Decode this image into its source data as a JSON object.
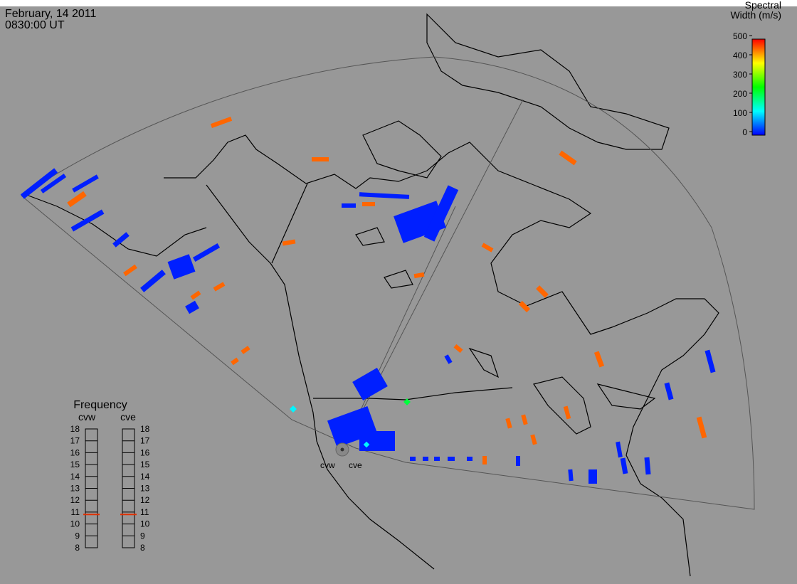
{
  "header": {
    "date": "February, 14 2011",
    "time": "0830:00 UT"
  },
  "colorbar": {
    "title": [
      "Spectral",
      "Width (m/s)"
    ],
    "clim": [
      0,
      500
    ],
    "ticks": [
      0,
      100,
      200,
      300,
      400,
      500
    ]
  },
  "frequency": {
    "title": "Frequency",
    "ticks": [
      18,
      17,
      16,
      15,
      14,
      13,
      12,
      11,
      10,
      9,
      8
    ],
    "lim": [
      8,
      18
    ],
    "radars": [
      {
        "name": "cvw",
        "value": 10.8
      },
      {
        "name": "cve",
        "value": 10.8
      }
    ]
  },
  "cells": [
    450,
    450,
    450,
    450,
    450,
    450,
    450,
    450,
    450,
    450,
    450,
    450,
    450,
    450,
    450,
    450,
    450,
    450,
    450,
    450,
    450,
    450,
    450,
    15,
    15,
    15,
    15,
    15,
    15,
    15,
    15,
    15,
    15,
    15,
    15,
    15,
    15,
    15,
    15,
    15,
    15,
    15,
    15,
    15,
    15,
    15,
    15,
    15,
    120,
    120,
    220,
    15,
    15,
    15,
    15,
    15
  ]
}
